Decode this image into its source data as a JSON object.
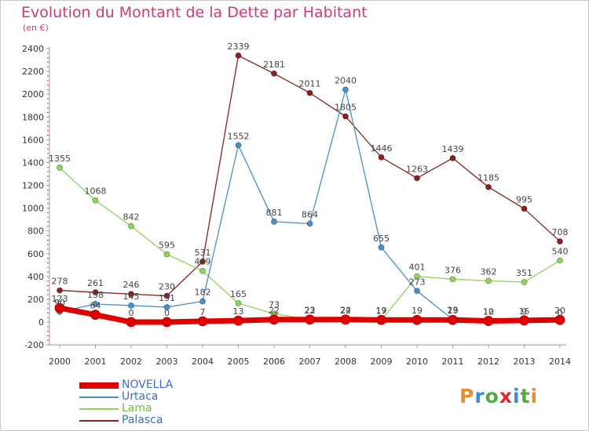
{
  "title": "Evolution du Montant de la Dette par Habitant",
  "unit": "(en €)",
  "logo": {
    "text": "Proxiti",
    "colors": [
      "#e8902f",
      "#3a8ed0",
      "#4fae3a",
      "#e0262f",
      "#3a8ed0",
      "#4fae3a",
      "#e8902f"
    ]
  },
  "chart_data": {
    "type": "line",
    "x": [
      "2000",
      "2001",
      "2002",
      "2003",
      "2004",
      "2005",
      "2006",
      "2007",
      "2008",
      "2009",
      "2010",
      "2011",
      "2012",
      "2013",
      "2014"
    ],
    "ylim": [
      -200,
      2400
    ],
    "yticks": [
      -200,
      0,
      200,
      400,
      600,
      800,
      1000,
      1200,
      1400,
      1600,
      1800,
      2000,
      2200,
      2400
    ],
    "grid": false,
    "legend_position": "bottom-left",
    "series": [
      {
        "name": "NOVELLA",
        "color": "#e00000",
        "values": [
          123,
          64,
          0,
          0,
          7,
          13,
          22,
          22,
          22,
          19,
          19,
          19,
          10,
          15,
          20
        ],
        "labels": [
          "123",
          "64",
          "0",
          "0",
          "7",
          "13",
          "22",
          "22",
          "22",
          "19",
          "19",
          "19",
          "10",
          "15",
          "20"
        ]
      },
      {
        "name": "Urtaca",
        "color": "#4a90c8",
        "values": [
          90,
          158,
          145,
          131,
          182,
          1552,
          881,
          864,
          2040,
          655,
          273,
          23,
          12,
          9,
          0
        ],
        "labels": [
          "90",
          "158",
          "145",
          "131",
          "182",
          "1552",
          "881",
          "864",
          "2040",
          "655",
          "273",
          "23",
          "12",
          "9",
          "0"
        ]
      },
      {
        "name": "Lama",
        "color": "#8ed45a",
        "values": [
          1355,
          1068,
          842,
          595,
          449,
          165,
          73,
          23,
          24,
          17,
          401,
          376,
          362,
          351,
          540
        ],
        "labels": [
          "1355",
          "1068",
          "842",
          "595",
          "449",
          "165",
          "73",
          "23",
          "24",
          "17",
          "401",
          "376",
          "362",
          "351",
          "540"
        ]
      },
      {
        "name": "Palasca",
        "color": "#8a2020",
        "values": [
          278,
          261,
          246,
          230,
          531,
          2339,
          2181,
          2011,
          1805,
          1446,
          1263,
          1439,
          1185,
          995,
          708
        ],
        "labels": [
          "278",
          "261",
          "246",
          "230",
          "531",
          "2339",
          "2181",
          "2011",
          "1805",
          "1446",
          "1263",
          "1439",
          "1185",
          "995",
          "708"
        ]
      }
    ]
  }
}
